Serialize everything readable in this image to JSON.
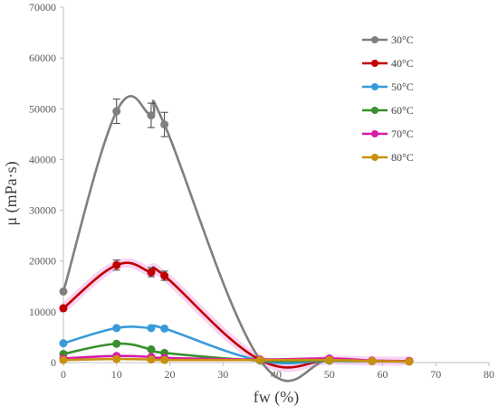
{
  "chart_data": {
    "type": "line",
    "title": "",
    "xlabel": "fw (%)",
    "ylabel": "μ (mPa·s)",
    "xlim": [
      0,
      80
    ],
    "ylim": [
      0,
      70000
    ],
    "x_ticks": [
      "0",
      "10",
      "20",
      "30",
      "40",
      "50",
      "60",
      "70",
      "80"
    ],
    "y_ticks": [
      "0",
      "10000",
      "20000",
      "30000",
      "40000",
      "50000",
      "60000",
      "70000"
    ],
    "grid": false,
    "legend_position": "top-right",
    "smooth": true,
    "series": [
      {
        "name": "30°C",
        "color": "#7f7f7f",
        "x": [
          0,
          10,
          16.5,
          19,
          37,
          50,
          58,
          65
        ],
        "y": [
          14000,
          49500,
          48700,
          46900,
          500,
          500,
          300,
          300
        ],
        "error": [
          0,
          2400,
          2400,
          2400,
          0,
          0,
          0,
          0
        ]
      },
      {
        "name": "40°C",
        "color": "#c00000",
        "x": [
          0,
          10,
          16.5,
          19,
          37,
          50,
          58,
          65
        ],
        "y": [
          10700,
          19200,
          17800,
          17100,
          500,
          500,
          300,
          300
        ],
        "error": [
          0,
          1000,
          900,
          900,
          0,
          0,
          0,
          0
        ]
      },
      {
        "name": "50°C",
        "color": "#3a9ad9",
        "x": [
          0,
          10,
          16.5,
          19,
          37,
          50,
          58,
          65
        ],
        "y": [
          3800,
          6800,
          6800,
          6700,
          400,
          400,
          300,
          200
        ]
      },
      {
        "name": "60°C",
        "color": "#3a8f2f",
        "x": [
          0,
          10,
          16.5,
          19,
          37,
          50,
          58,
          65
        ],
        "y": [
          1700,
          3700,
          2600,
          1900,
          400,
          400,
          300,
          200
        ]
      },
      {
        "name": "70°C",
        "color": "#d81ba6",
        "x": [
          0,
          10,
          16.5,
          19,
          37,
          50,
          58,
          65
        ],
        "y": [
          800,
          1300,
          1100,
          900,
          600,
          800,
          400,
          300
        ]
      },
      {
        "name": "80°C",
        "color": "#c9900f",
        "x": [
          0,
          10,
          16.5,
          19,
          37,
          50,
          58,
          65
        ],
        "y": [
          500,
          700,
          600,
          500,
          500,
          500,
          300,
          200
        ]
      }
    ]
  }
}
